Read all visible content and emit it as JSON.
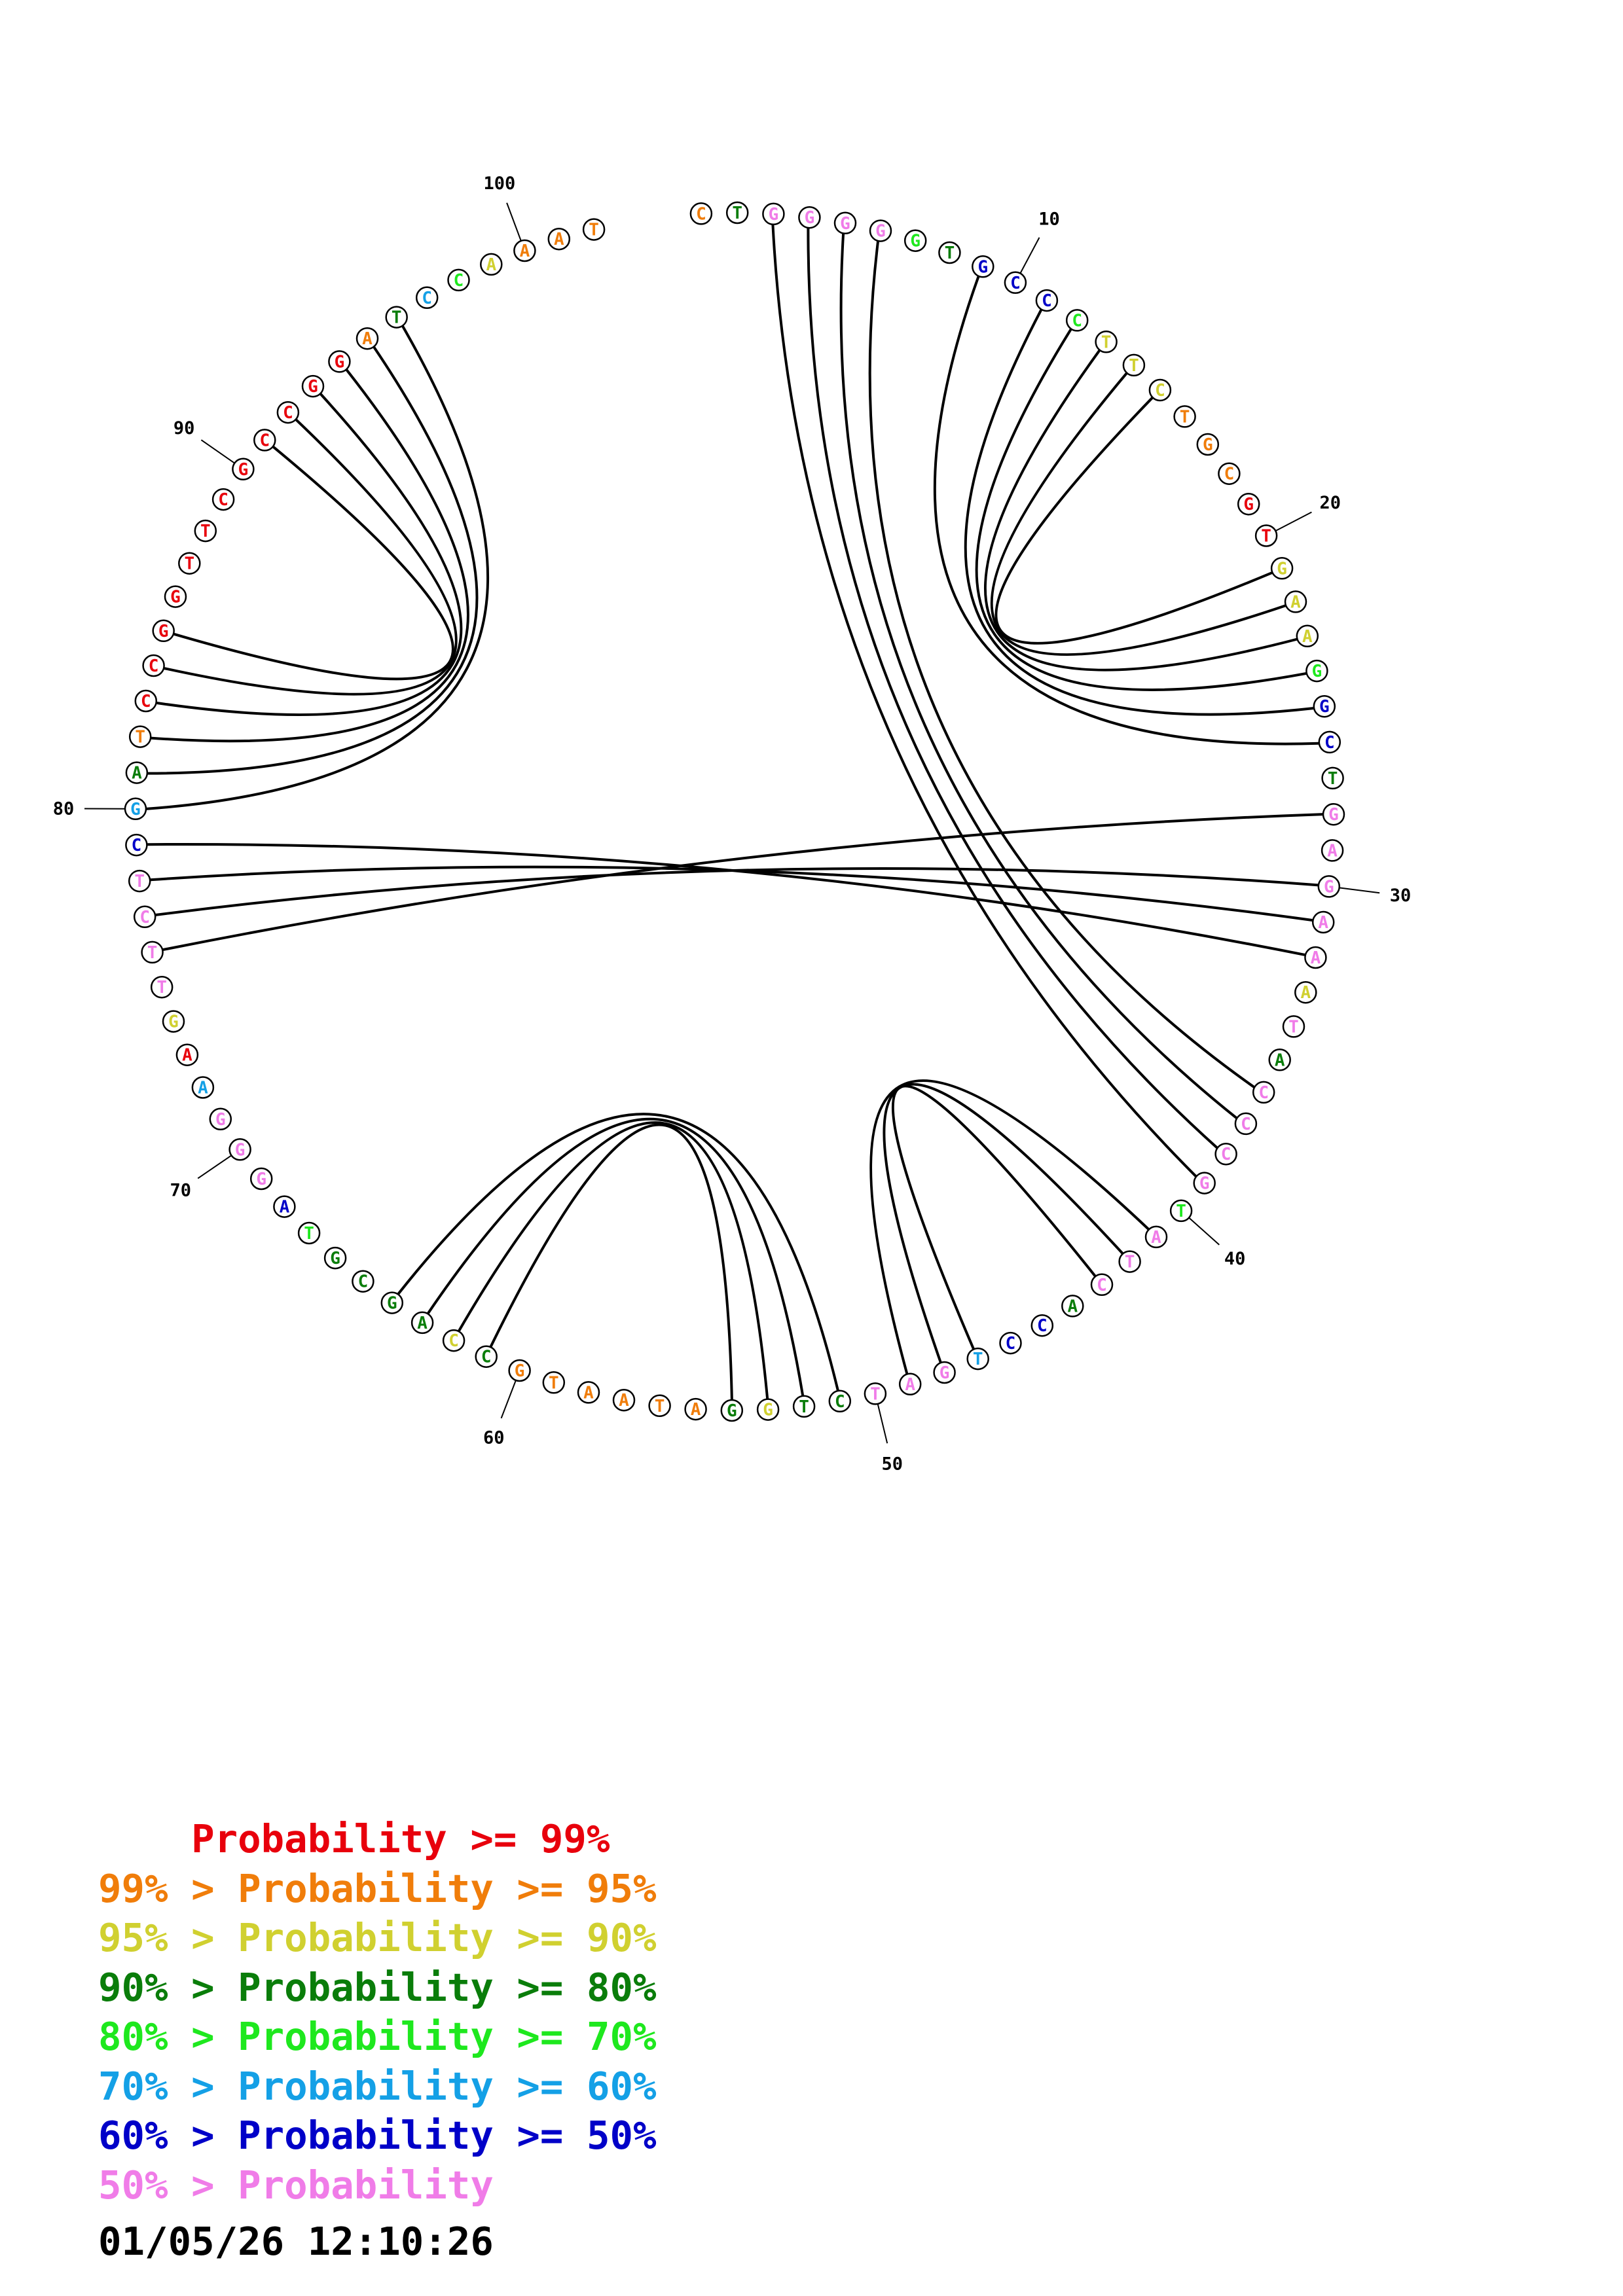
{
  "colors": {
    "red": "#e8000c",
    "orange": "#f07d0a",
    "yellow": "#d0d030",
    "dgreen": "#0a7d0a",
    "lgreen": "#1ee81e",
    "cyan": "#14a0e6",
    "blue": "#0000c8",
    "pink": "#f07ce8"
  },
  "sequence": [
    {
      "n": 1,
      "b": "C",
      "c": "orange"
    },
    {
      "n": 2,
      "b": "T",
      "c": "dgreen"
    },
    {
      "n": 3,
      "b": "G",
      "c": "pink"
    },
    {
      "n": 4,
      "b": "G",
      "c": "pink"
    },
    {
      "n": 5,
      "b": "G",
      "c": "pink"
    },
    {
      "n": 6,
      "b": "G",
      "c": "pink"
    },
    {
      "n": 7,
      "b": "G",
      "c": "lgreen"
    },
    {
      "n": 8,
      "b": "T",
      "c": "dgreen"
    },
    {
      "n": 9,
      "b": "G",
      "c": "blue"
    },
    {
      "n": 10,
      "b": "C",
      "c": "blue"
    },
    {
      "n": 11,
      "b": "C",
      "c": "blue"
    },
    {
      "n": 12,
      "b": "C",
      "c": "lgreen"
    },
    {
      "n": 13,
      "b": "T",
      "c": "yellow"
    },
    {
      "n": 14,
      "b": "T",
      "c": "yellow"
    },
    {
      "n": 15,
      "b": "C",
      "c": "yellow"
    },
    {
      "n": 16,
      "b": "T",
      "c": "orange"
    },
    {
      "n": 17,
      "b": "G",
      "c": "orange"
    },
    {
      "n": 18,
      "b": "C",
      "c": "orange"
    },
    {
      "n": 19,
      "b": "G",
      "c": "red"
    },
    {
      "n": 20,
      "b": "T",
      "c": "red"
    },
    {
      "n": 21,
      "b": "G",
      "c": "yellow"
    },
    {
      "n": 22,
      "b": "A",
      "c": "yellow"
    },
    {
      "n": 23,
      "b": "A",
      "c": "yellow"
    },
    {
      "n": 24,
      "b": "G",
      "c": "lgreen"
    },
    {
      "n": 25,
      "b": "G",
      "c": "blue"
    },
    {
      "n": 26,
      "b": "C",
      "c": "blue"
    },
    {
      "n": 27,
      "b": "T",
      "c": "dgreen"
    },
    {
      "n": 28,
      "b": "G",
      "c": "pink"
    },
    {
      "n": 29,
      "b": "A",
      "c": "pink"
    },
    {
      "n": 30,
      "b": "G",
      "c": "pink"
    },
    {
      "n": 31,
      "b": "A",
      "c": "pink"
    },
    {
      "n": 32,
      "b": "A",
      "c": "pink"
    },
    {
      "n": 33,
      "b": "A",
      "c": "yellow"
    },
    {
      "n": 34,
      "b": "T",
      "c": "pink"
    },
    {
      "n": 35,
      "b": "A",
      "c": "dgreen"
    },
    {
      "n": 36,
      "b": "C",
      "c": "pink"
    },
    {
      "n": 37,
      "b": "C",
      "c": "pink"
    },
    {
      "n": 38,
      "b": "C",
      "c": "pink"
    },
    {
      "n": 39,
      "b": "G",
      "c": "pink"
    },
    {
      "n": 40,
      "b": "T",
      "c": "lgreen"
    },
    {
      "n": 41,
      "b": "A",
      "c": "pink"
    },
    {
      "n": 42,
      "b": "T",
      "c": "pink"
    },
    {
      "n": 43,
      "b": "C",
      "c": "pink"
    },
    {
      "n": 44,
      "b": "A",
      "c": "dgreen"
    },
    {
      "n": 45,
      "b": "C",
      "c": "blue"
    },
    {
      "n": 46,
      "b": "C",
      "c": "blue"
    },
    {
      "n": 47,
      "b": "T",
      "c": "cyan"
    },
    {
      "n": 48,
      "b": "G",
      "c": "pink"
    },
    {
      "n": 49,
      "b": "A",
      "c": "pink"
    },
    {
      "n": 50,
      "b": "T",
      "c": "pink"
    },
    {
      "n": 51,
      "b": "C",
      "c": "dgreen"
    },
    {
      "n": 52,
      "b": "T",
      "c": "dgreen"
    },
    {
      "n": 53,
      "b": "G",
      "c": "yellow"
    },
    {
      "n": 54,
      "b": "G",
      "c": "dgreen"
    },
    {
      "n": 55,
      "b": "A",
      "c": "orange"
    },
    {
      "n": 56,
      "b": "T",
      "c": "orange"
    },
    {
      "n": 57,
      "b": "A",
      "c": "orange"
    },
    {
      "n": 58,
      "b": "A",
      "c": "orange"
    },
    {
      "n": 59,
      "b": "T",
      "c": "orange"
    },
    {
      "n": 60,
      "b": "G",
      "c": "orange"
    },
    {
      "n": 61,
      "b": "C",
      "c": "dgreen"
    },
    {
      "n": 62,
      "b": "C",
      "c": "yellow"
    },
    {
      "n": 63,
      "b": "A",
      "c": "dgreen"
    },
    {
      "n": 64,
      "b": "G",
      "c": "dgreen"
    },
    {
      "n": 65,
      "b": "C",
      "c": "dgreen"
    },
    {
      "n": 66,
      "b": "G",
      "c": "dgreen"
    },
    {
      "n": 67,
      "b": "T",
      "c": "lgreen"
    },
    {
      "n": 68,
      "b": "A",
      "c": "blue"
    },
    {
      "n": 69,
      "b": "G",
      "c": "pink"
    },
    {
      "n": 70,
      "b": "G",
      "c": "pink"
    },
    {
      "n": 71,
      "b": "G",
      "c": "pink"
    },
    {
      "n": 72,
      "b": "A",
      "c": "cyan"
    },
    {
      "n": 73,
      "b": "A",
      "c": "red"
    },
    {
      "n": 74,
      "b": "G",
      "c": "yellow"
    },
    {
      "n": 75,
      "b": "T",
      "c": "pink"
    },
    {
      "n": 76,
      "b": "T",
      "c": "pink"
    },
    {
      "n": 77,
      "b": "C",
      "c": "pink"
    },
    {
      "n": 78,
      "b": "T",
      "c": "pink"
    },
    {
      "n": 79,
      "b": "C",
      "c": "blue"
    },
    {
      "n": 80,
      "b": "G",
      "c": "cyan"
    },
    {
      "n": 81,
      "b": "A",
      "c": "dgreen"
    },
    {
      "n": 82,
      "b": "T",
      "c": "orange"
    },
    {
      "n": 83,
      "b": "C",
      "c": "red"
    },
    {
      "n": 84,
      "b": "C",
      "c": "red"
    },
    {
      "n": 85,
      "b": "G",
      "c": "red"
    },
    {
      "n": 86,
      "b": "G",
      "c": "red"
    },
    {
      "n": 87,
      "b": "T",
      "c": "red"
    },
    {
      "n": 88,
      "b": "T",
      "c": "red"
    },
    {
      "n": 89,
      "b": "C",
      "c": "red"
    },
    {
      "n": 90,
      "b": "G",
      "c": "red"
    },
    {
      "n": 91,
      "b": "C",
      "c": "red"
    },
    {
      "n": 92,
      "b": "C",
      "c": "red"
    },
    {
      "n": 93,
      "b": "G",
      "c": "red"
    },
    {
      "n": 94,
      "b": "G",
      "c": "red"
    },
    {
      "n": 95,
      "b": "A",
      "c": "orange"
    },
    {
      "n": 96,
      "b": "T",
      "c": "dgreen"
    },
    {
      "n": 97,
      "b": "C",
      "c": "cyan"
    },
    {
      "n": 98,
      "b": "C",
      "c": "lgreen"
    },
    {
      "n": 99,
      "b": "A",
      "c": "yellow"
    },
    {
      "n": 100,
      "b": "A",
      "c": "orange"
    },
    {
      "n": 101,
      "b": "A",
      "c": "orange"
    },
    {
      "n": 102,
      "b": "T",
      "c": "orange"
    }
  ],
  "tick_labels": [
    "10",
    "20",
    "30",
    "40",
    "50",
    "60",
    "70",
    "80",
    "90",
    "100"
  ],
  "pairs": [
    [
      3,
      39
    ],
    [
      4,
      38
    ],
    [
      5,
      37
    ],
    [
      6,
      36
    ],
    [
      9,
      26
    ],
    [
      11,
      25
    ],
    [
      12,
      24
    ],
    [
      13,
      23
    ],
    [
      14,
      22
    ],
    [
      15,
      21
    ],
    [
      28,
      76
    ],
    [
      30,
      77
    ],
    [
      31,
      78
    ],
    [
      32,
      79
    ],
    [
      41,
      49
    ],
    [
      42,
      48
    ],
    [
      43,
      47
    ],
    [
      51,
      64
    ],
    [
      52,
      63
    ],
    [
      53,
      62
    ],
    [
      54,
      61
    ],
    [
      80,
      96
    ],
    [
      81,
      95
    ],
    [
      82,
      94
    ],
    [
      83,
      93
    ],
    [
      84,
      92
    ],
    [
      85,
      91
    ]
  ],
  "legend": [
    {
      "prefix": "    ",
      "text": "Probability >= 99%",
      "c": "red"
    },
    {
      "prefix": "99% > ",
      "text": "Probability >= 95%",
      "c": "orange"
    },
    {
      "prefix": "95% > ",
      "text": "Probability >= 90%",
      "c": "yellow"
    },
    {
      "prefix": "90% > ",
      "text": "Probability >= 80%",
      "c": "dgreen"
    },
    {
      "prefix": "80% > ",
      "text": "Probability >= 70%",
      "c": "lgreen"
    },
    {
      "prefix": "70% > ",
      "text": "Probability >= 60%",
      "c": "cyan"
    },
    {
      "prefix": "60% > ",
      "text": "Probability >= 50%",
      "c": "blue"
    },
    {
      "prefix": "50% > ",
      "text": "Probability",
      "c": "pink"
    }
  ],
  "timestamp": "01/05/26 12:10:26"
}
